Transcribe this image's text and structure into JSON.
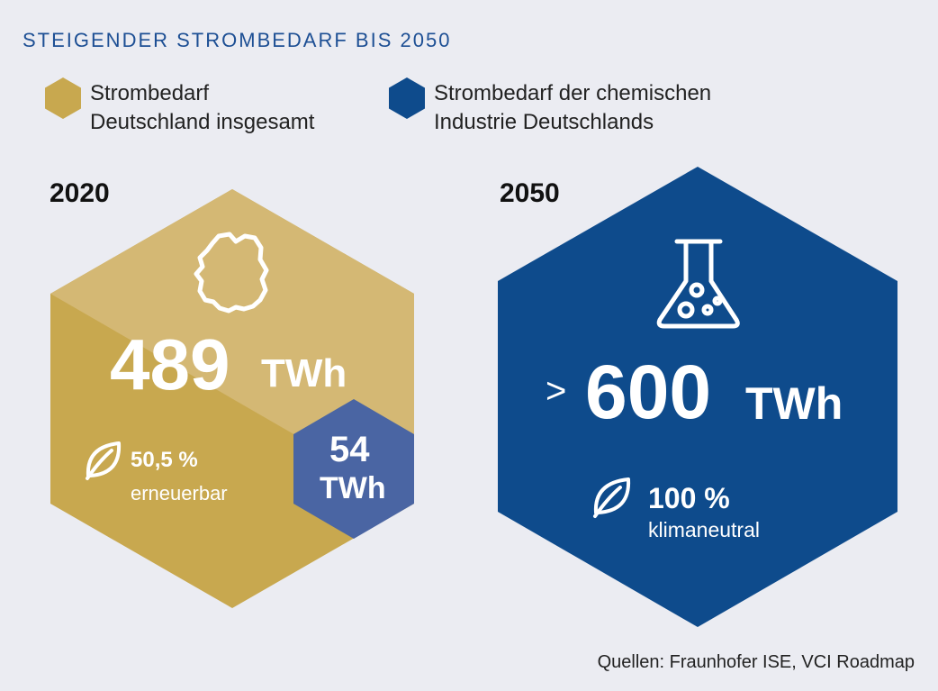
{
  "title": "STEIGENDER STROMBEDARF BIS 2050",
  "legend": [
    {
      "line1": "Strombedarf",
      "line2": "Deutschland insgesamt",
      "color": "#c8a84f",
      "icon": "hexagon"
    },
    {
      "line1": "Strombedarf der chemischen",
      "line2": "Industrie Deutschlands",
      "color": "#0e4b8c",
      "icon": "hexagon"
    }
  ],
  "year_2020": {
    "year": "2020",
    "total_value": "489",
    "total_unit": "TWh",
    "renewable_value": "50,5 %",
    "renewable_label": "erneuerbar",
    "chem_value": "54",
    "chem_unit": "TWh",
    "icon": "germany-map-icon"
  },
  "year_2050": {
    "year": "2050",
    "prefix": ">",
    "total_value": "600",
    "total_unit": "TWh",
    "neutral_value": "100 %",
    "neutral_label": "klimaneutral",
    "icon": "flask-icon"
  },
  "source": "Quellen: Fraunhofer ISE, VCI Roadmap",
  "colors": {
    "gold_light": "#d4b874",
    "gold_dark": "#c8a84f",
    "blue": "#0e4b8c",
    "blue_light": "#4a65a3",
    "background": "#ebecf2"
  }
}
